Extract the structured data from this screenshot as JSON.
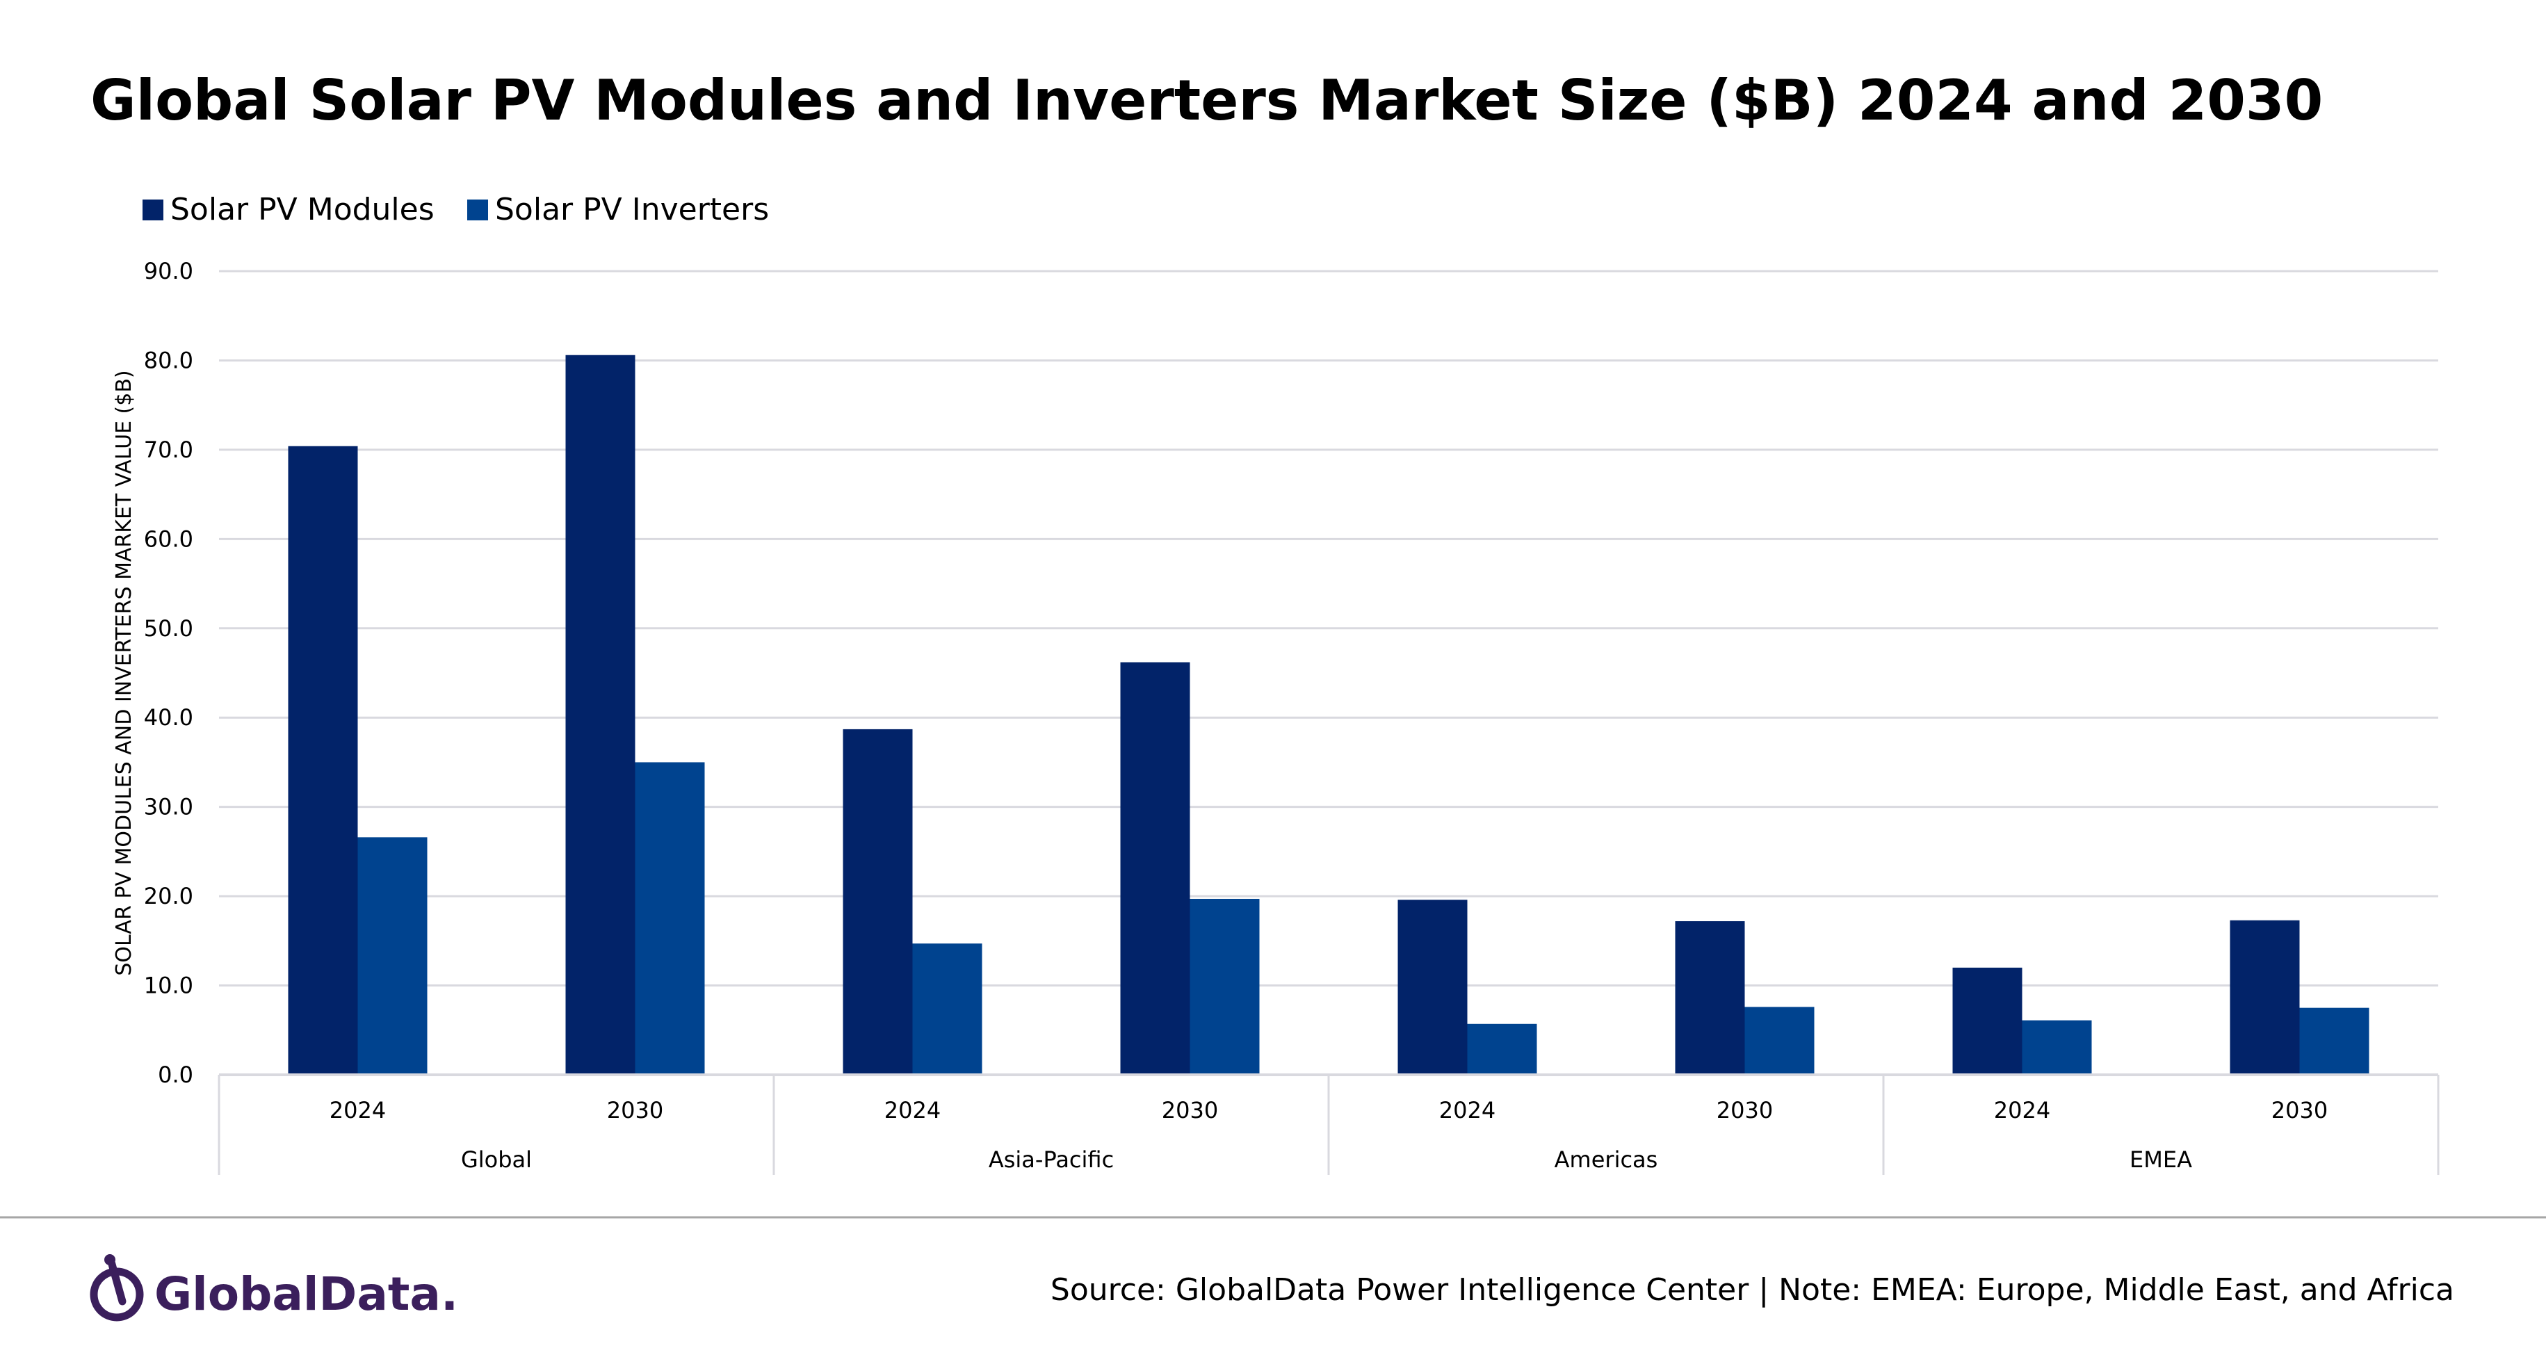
{
  "chart_data": {
    "type": "bar",
    "title": "Global Solar PV Modules and Inverters Market Size ($B) 2024 and 2030",
    "ylabel": "SOLAR PV MODULES AND INVERTERS MARKET VALUE ($B)",
    "xlabel": "",
    "ylim": [
      0,
      90
    ],
    "yticks": [
      "0.0",
      "10.0",
      "20.0",
      "30.0",
      "40.0",
      "50.0",
      "60.0",
      "70.0",
      "80.0",
      "90.0"
    ],
    "grid": true,
    "legend_position": "top-left",
    "groups": [
      "Global",
      "Asia-Pacific",
      "Americas",
      "EMEA"
    ],
    "categories": [
      "2024",
      "2030",
      "2024",
      "2030",
      "2024",
      "2030",
      "2024",
      "2030"
    ],
    "series": [
      {
        "name": "Solar PV Modules",
        "color": "#022369",
        "values": [
          70.4,
          80.6,
          38.7,
          46.2,
          19.6,
          17.2,
          12.0,
          17.3
        ]
      },
      {
        "name": "Solar PV Inverters",
        "color": "#00438f",
        "values": [
          26.6,
          35.0,
          14.7,
          19.7,
          5.7,
          7.6,
          6.1,
          7.5
        ]
      }
    ]
  },
  "footer": {
    "logo": "GlobalData.",
    "source": "Source: GlobalData Power Intelligence Center | Note: EMEA: Europe, Middle East, and Africa"
  }
}
